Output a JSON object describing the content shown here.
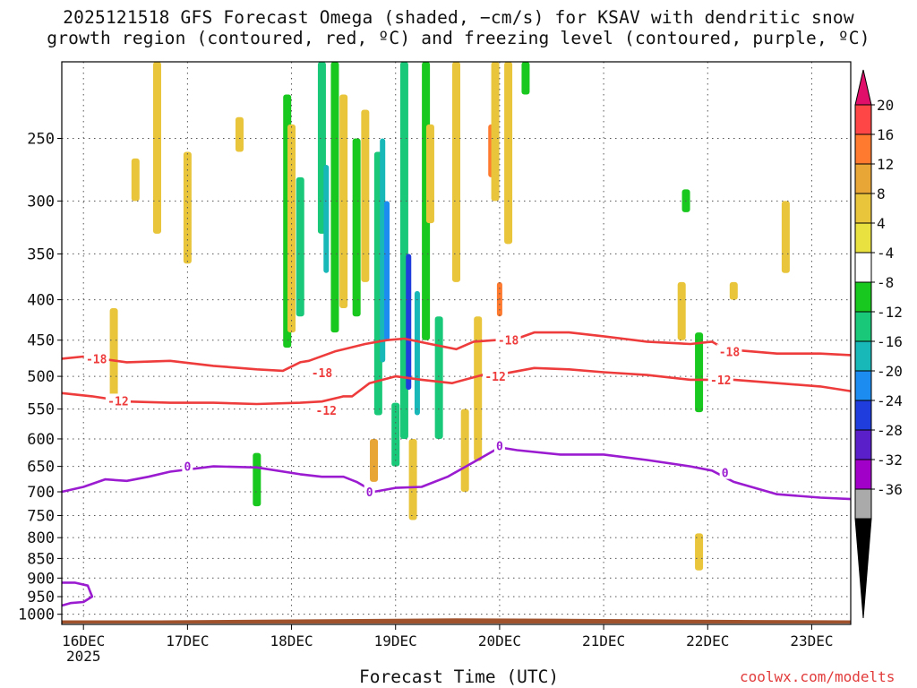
{
  "title_line1": "2025121518 GFS Forecast Omega (shaded, −cm/s) for KSAV with dendritic snow",
  "title_line2": "growth region (contoured, red, ºC) and freezing level (contoured, purple, ºC)",
  "xlabel": "Forecast Time (UTC)",
  "credit": "coolwx.com/modelts",
  "colors": {
    "background": "#ffffff",
    "grid": "#555555",
    "dgz_contour": "#ee3b3b",
    "freezing_contour": "#9a1bd0",
    "ground": "#a0522d"
  },
  "chart_data": {
    "type": "heatmap",
    "x_type": "forecast time",
    "x_ticks": [
      {
        "label": "16DEC",
        "sub": "2025",
        "t": 0
      },
      {
        "label": "17DEC",
        "t": 24
      },
      {
        "label": "18DEC",
        "t": 48
      },
      {
        "label": "19DEC",
        "t": 72
      },
      {
        "label": "20DEC",
        "t": 96
      },
      {
        "label": "21DEC",
        "t": 120
      },
      {
        "label": "22DEC",
        "t": 144
      },
      {
        "label": "23DEC",
        "t": 168
      }
    ],
    "x_range_hours": [
      -5,
      177
    ],
    "y_axis": "pressure (hPa)",
    "y_ticks": [
      250,
      300,
      350,
      400,
      450,
      500,
      550,
      600,
      650,
      700,
      750,
      800,
      850,
      900,
      950,
      1000
    ],
    "y_range": [
      200,
      1030
    ],
    "colorbar": {
      "levels": [
        20,
        16,
        12,
        8,
        4,
        -4,
        -8,
        -12,
        -16,
        -20,
        -24,
        -28,
        -32,
        -36
      ],
      "colors": [
        "#ff4646",
        "#ff7a2e",
        "#e8a637",
        "#e8c53b",
        "#e9e140",
        "#ffffff",
        "#19c81e",
        "#19c878",
        "#19b8b8",
        "#1c8cf0",
        "#1f3cdc",
        "#5a1fc8",
        "#a000c8",
        "#aaaaaa"
      ],
      "top_extend_color": "#e0106a",
      "bottom_extend_color": "#000000"
    },
    "omega_regions": [
      {
        "t": 7,
        "p1": 410,
        "p2": 545,
        "value": 5
      },
      {
        "t": 12,
        "p1": 265,
        "p2": 300,
        "value": 5
      },
      {
        "t": 17,
        "p1": 180,
        "p2": 330,
        "value": 5
      },
      {
        "t": 24,
        "p1": 260,
        "p2": 360,
        "value": 5
      },
      {
        "t": 36,
        "p1": 235,
        "p2": 260,
        "value": 5
      },
      {
        "t": 40,
        "p1": 625,
        "p2": 730,
        "value": -6
      },
      {
        "t": 47,
        "p1": 220,
        "p2": 460,
        "value": -6
      },
      {
        "t": 48,
        "p1": 240,
        "p2": 440,
        "value": 5
      },
      {
        "t": 50,
        "p1": 280,
        "p2": 420,
        "value": -8
      },
      {
        "t": 55,
        "p1": 200,
        "p2": 330,
        "value": -8
      },
      {
        "t": 56,
        "p1": 270,
        "p2": 370,
        "value": -14
      },
      {
        "t": 58,
        "p1": 200,
        "p2": 440,
        "value": -6
      },
      {
        "t": 60,
        "p1": 220,
        "p2": 410,
        "value": 5
      },
      {
        "t": 63,
        "p1": 250,
        "p2": 420,
        "value": -6
      },
      {
        "t": 65,
        "p1": 230,
        "p2": 380,
        "value": 5
      },
      {
        "t": 67,
        "p1": 600,
        "p2": 680,
        "value": 9
      },
      {
        "t": 68,
        "p1": 260,
        "p2": 560,
        "value": -10
      },
      {
        "t": 69,
        "p1": 250,
        "p2": 480,
        "value": -14
      },
      {
        "t": 70,
        "p1": 300,
        "p2": 450,
        "value": -18
      },
      {
        "t": 72,
        "p1": 540,
        "p2": 650,
        "value": -10
      },
      {
        "t": 74,
        "p1": 200,
        "p2": 600,
        "value": -8
      },
      {
        "t": 75,
        "p1": 350,
        "p2": 520,
        "value": -22
      },
      {
        "t": 76,
        "p1": 600,
        "p2": 760,
        "value": 8
      },
      {
        "t": 77,
        "p1": 390,
        "p2": 560,
        "value": -14
      },
      {
        "t": 79,
        "p1": 180,
        "p2": 450,
        "value": -6
      },
      {
        "t": 80,
        "p1": 240,
        "p2": 320,
        "value": 5
      },
      {
        "t": 82,
        "p1": 420,
        "p2": 600,
        "value": -8
      },
      {
        "t": 86,
        "p1": 200,
        "p2": 380,
        "value": 5
      },
      {
        "t": 88,
        "p1": 550,
        "p2": 700,
        "value": 6
      },
      {
        "t": 91,
        "p1": 420,
        "p2": 640,
        "value": 5
      },
      {
        "t": 94,
        "p1": 240,
        "p2": 280,
        "value": 14
      },
      {
        "t": 95,
        "p1": 200,
        "p2": 300,
        "value": 5
      },
      {
        "t": 96,
        "p1": 380,
        "p2": 420,
        "value": 14
      },
      {
        "t": 98,
        "p1": 200,
        "p2": 340,
        "value": 5
      },
      {
        "t": 102,
        "p1": 200,
        "p2": 220,
        "value": -6
      },
      {
        "t": 138,
        "p1": 380,
        "p2": 450,
        "value": 5
      },
      {
        "t": 139,
        "p1": 290,
        "p2": 310,
        "value": -6
      },
      {
        "t": 142,
        "p1": 440,
        "p2": 555,
        "value": -6
      },
      {
        "t": 142,
        "p1": 790,
        "p2": 880,
        "value": 5
      },
      {
        "t": 150,
        "p1": 380,
        "p2": 400,
        "value": 5
      },
      {
        "t": 162,
        "p1": 300,
        "p2": 370,
        "value": 5
      }
    ],
    "contours": [
      {
        "name": "dgz_minus18",
        "label": "-18",
        "color_key": "dgz_contour",
        "label_at": [
          {
            "t": 3,
            "p": 475
          },
          {
            "t": 55,
            "p": 495
          },
          {
            "t": 98,
            "p": 450
          },
          {
            "t": 149,
            "p": 465
          }
        ],
        "points": [
          [
            -5,
            475
          ],
          [
            0,
            472
          ],
          [
            10,
            480
          ],
          [
            20,
            478
          ],
          [
            30,
            485
          ],
          [
            40,
            490
          ],
          [
            46,
            492
          ],
          [
            50,
            480
          ],
          [
            52,
            478
          ],
          [
            58,
            465
          ],
          [
            65,
            455
          ],
          [
            70,
            450
          ],
          [
            74,
            448
          ],
          [
            80,
            455
          ],
          [
            86,
            462
          ],
          [
            90,
            452
          ],
          [
            95,
            450
          ],
          [
            100,
            448
          ],
          [
            104,
            440
          ],
          [
            112,
            440
          ],
          [
            120,
            445
          ],
          [
            130,
            452
          ],
          [
            140,
            455
          ],
          [
            145,
            452
          ],
          [
            148,
            462
          ],
          [
            160,
            468
          ],
          [
            170,
            468
          ],
          [
            177,
            470
          ]
        ]
      },
      {
        "name": "dgz_minus12",
        "label": "-12",
        "color_key": "dgz_contour",
        "label_at": [
          {
            "t": 8,
            "p": 537
          },
          {
            "t": 56,
            "p": 552
          },
          {
            "t": 95,
            "p": 500
          },
          {
            "t": 147,
            "p": 505
          }
        ],
        "points": [
          [
            -5,
            525
          ],
          [
            2,
            530
          ],
          [
            10,
            538
          ],
          [
            20,
            540
          ],
          [
            30,
            540
          ],
          [
            40,
            542
          ],
          [
            50,
            540
          ],
          [
            55,
            538
          ],
          [
            60,
            530
          ],
          [
            62,
            530
          ],
          [
            66,
            510
          ],
          [
            72,
            500
          ],
          [
            78,
            505
          ],
          [
            85,
            510
          ],
          [
            92,
            498
          ],
          [
            98,
            495
          ],
          [
            104,
            488
          ],
          [
            112,
            490
          ],
          [
            120,
            494
          ],
          [
            130,
            498
          ],
          [
            140,
            505
          ],
          [
            150,
            505
          ],
          [
            160,
            510
          ],
          [
            170,
            515
          ],
          [
            177,
            522
          ]
        ]
      },
      {
        "name": "freezing_zero",
        "label": "0",
        "color_key": "freezing_contour",
        "label_at": [
          {
            "t": 24,
            "p": 650
          },
          {
            "t": 66,
            "p": 700
          },
          {
            "t": 96,
            "p": 612
          },
          {
            "t": 148,
            "p": 662
          }
        ],
        "points": [
          [
            -5,
            700
          ],
          [
            0,
            690
          ],
          [
            5,
            675
          ],
          [
            10,
            678
          ],
          [
            15,
            670
          ],
          [
            20,
            660
          ],
          [
            30,
            650
          ],
          [
            40,
            652
          ],
          [
            50,
            665
          ],
          [
            55,
            670
          ],
          [
            60,
            670
          ],
          [
            63,
            680
          ],
          [
            67,
            700
          ],
          [
            72,
            692
          ],
          [
            78,
            690
          ],
          [
            84,
            670
          ],
          [
            90,
            642
          ],
          [
            96,
            615
          ],
          [
            100,
            620
          ],
          [
            110,
            628
          ],
          [
            120,
            628
          ],
          [
            130,
            638
          ],
          [
            140,
            650
          ],
          [
            145,
            658
          ],
          [
            150,
            680
          ],
          [
            160,
            705
          ],
          [
            170,
            712
          ],
          [
            177,
            715
          ]
        ]
      },
      {
        "name": "freezing_zero_surface",
        "label": "",
        "color_key": "freezing_contour",
        "label_at": [],
        "points": [
          [
            -5,
            912
          ],
          [
            -2,
            912
          ],
          [
            1,
            920
          ],
          [
            2,
            950
          ],
          [
            0,
            965
          ],
          [
            -3,
            968
          ],
          [
            -5,
            975
          ]
        ]
      }
    ],
    "ground_surface_p": [
      1018,
      1018,
      1016,
      1014,
      1012,
      1013,
      1015,
      1017,
      1018
    ]
  }
}
